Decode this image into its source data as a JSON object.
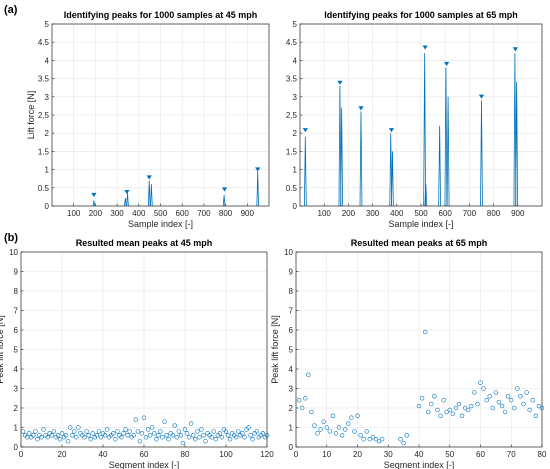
{
  "figure": {
    "label_a": "(a)",
    "label_b": "(b)"
  },
  "chart_data": [
    {
      "type": "line",
      "title": "Identifying peaks for 1000 samples at 45 mph",
      "xlabel": "Sample index [-]",
      "ylabel": "Lift force [N]",
      "xlim": [
        0,
        1000
      ],
      "ylim": [
        0,
        5
      ],
      "xticks": [
        100,
        200,
        300,
        400,
        500,
        600,
        700,
        800,
        900
      ],
      "yticks": [
        0,
        0.5,
        1,
        1.5,
        2,
        2.5,
        3,
        3.5,
        4,
        4.5,
        5
      ],
      "grid": true,
      "series": [
        {
          "pulses": [
            [
              193,
              0.15
            ],
            [
              338,
              0.22
            ],
            [
              348,
              0.35
            ],
            [
              448,
              0.7
            ],
            [
              458,
              0.6
            ],
            [
              793,
              0.3
            ],
            [
              948,
              0.95
            ]
          ]
        }
      ],
      "peak_markers": [
        [
          193,
          0.3
        ],
        [
          345,
          0.38
        ],
        [
          448,
          0.78
        ],
        [
          795,
          0.45
        ],
        [
          948,
          1.0
        ]
      ],
      "color": "#0072BD"
    },
    {
      "type": "line",
      "title": "Identifying peaks for 1000 samples at 65 mph",
      "xlabel": "Sample index [-]",
      "ylabel": "",
      "xlim": [
        0,
        1000
      ],
      "ylim": [
        0,
        5
      ],
      "xticks": [
        100,
        200,
        300,
        400,
        500,
        600,
        700,
        800,
        900
      ],
      "yticks": [
        0,
        0.5,
        1,
        1.5,
        2,
        2.5,
        3,
        3.5,
        4,
        4.5,
        5
      ],
      "grid": true,
      "series": [
        {
          "pulses": [
            [
              22,
              1.9
            ],
            [
              165,
              3.3
            ],
            [
              172,
              2.7
            ],
            [
              252,
              2.6
            ],
            [
              375,
              2.0
            ],
            [
              382,
              1.5
            ],
            [
              515,
              4.2
            ],
            [
              520,
              0.6
            ],
            [
              577,
              2.2
            ],
            [
              603,
              3.8
            ],
            [
              612,
              3.0
            ],
            [
              750,
              2.9
            ],
            [
              888,
              4.2
            ],
            [
              895,
              3.4
            ]
          ]
        }
      ],
      "peak_markers": [
        [
          22,
          2.08
        ],
        [
          165,
          3.38
        ],
        [
          252,
          2.68
        ],
        [
          378,
          2.08
        ],
        [
          517,
          4.35
        ],
        [
          606,
          3.9
        ],
        [
          750,
          3.0
        ],
        [
          890,
          4.3
        ]
      ],
      "color": "#0072BD"
    },
    {
      "type": "scatter",
      "title": "Resulted mean peaks at 45 mph",
      "xlabel": "Segment index [-]",
      "ylabel": "Peak lift force [N]",
      "xlim": [
        0,
        120
      ],
      "ylim": [
        0,
        10
      ],
      "xticks": [
        0,
        20,
        40,
        60,
        80,
        100,
        120
      ],
      "yticks": [
        0,
        1,
        2,
        3,
        4,
        5,
        6,
        7,
        8,
        9,
        10
      ],
      "grid": true,
      "marker": "open-circle",
      "color": "#0072BD",
      "x": [
        1,
        2,
        3,
        4,
        5,
        6,
        7,
        8,
        9,
        10,
        11,
        12,
        13,
        14,
        15,
        16,
        17,
        18,
        19,
        20,
        21,
        22,
        23,
        24,
        25,
        26,
        27,
        28,
        29,
        30,
        31,
        32,
        33,
        34,
        35,
        36,
        37,
        38,
        39,
        40,
        41,
        42,
        43,
        44,
        45,
        46,
        47,
        48,
        49,
        50,
        51,
        52,
        53,
        54,
        55,
        56,
        57,
        58,
        59,
        60,
        61,
        62,
        63,
        64,
        65,
        66,
        67,
        68,
        69,
        70,
        71,
        72,
        73,
        74,
        75,
        76,
        77,
        78,
        79,
        80,
        81,
        82,
        83,
        84,
        85,
        86,
        87,
        88,
        89,
        90,
        91,
        92,
        93,
        94,
        95,
        96,
        97,
        98,
        99,
        100,
        101,
        102,
        103,
        104,
        105,
        106,
        107,
        108,
        109,
        110,
        111,
        112,
        113,
        114,
        115,
        116,
        117,
        118,
        119,
        120
      ],
      "y": [
        0.8,
        0.6,
        0.5,
        0.7,
        0.5,
        0.6,
        0.8,
        0.4,
        0.6,
        0.5,
        0.9,
        0.6,
        0.5,
        0.7,
        0.6,
        0.8,
        0.5,
        0.6,
        0.4,
        0.7,
        0.5,
        0.6,
        0.3,
        1.0,
        0.6,
        0.8,
        0.5,
        1.0,
        0.7,
        0.6,
        0.5,
        0.8,
        0.6,
        0.4,
        0.7,
        0.5,
        0.6,
        0.8,
        0.5,
        0.7,
        0.6,
        0.9,
        0.5,
        0.6,
        0.7,
        0.4,
        0.8,
        0.6,
        0.5,
        0.7,
        0.9,
        0.6,
        0.8,
        0.5,
        0.6,
        1.4,
        0.8,
        0.3,
        0.7,
        1.5,
        0.5,
        0.9,
        0.6,
        1.0,
        0.7,
        0.4,
        0.6,
        0.8,
        0.5,
        1.3,
        0.6,
        0.4,
        0.7,
        0.6,
        1.1,
        0.5,
        0.8,
        0.6,
        0.2,
        0.9,
        0.7,
        0.5,
        1.2,
        0.6,
        0.4,
        0.8,
        0.5,
        0.9,
        0.6,
        0.3,
        0.7,
        0.6,
        0.5,
        0.8,
        0.4,
        0.6,
        0.7,
        0.5,
        0.9,
        0.8,
        0.6,
        0.4,
        0.7,
        0.6,
        0.5,
        0.8,
        0.6,
        0.7,
        0.5,
        0.9,
        1.0,
        0.6,
        0.4,
        0.7,
        0.8,
        0.5,
        0.6,
        0.7,
        0.5,
        0.6
      ]
    },
    {
      "type": "scatter",
      "title": "Resulted mean peaks at 65 mph",
      "xlabel": "Segment index [-]",
      "ylabel": "Peak lift force [N]",
      "xlim": [
        0,
        80
      ],
      "ylim": [
        0,
        10
      ],
      "xticks": [
        0,
        10,
        20,
        30,
        40,
        50,
        60,
        70,
        80
      ],
      "yticks": [
        0,
        1,
        2,
        3,
        4,
        5,
        6,
        7,
        8,
        9,
        10
      ],
      "grid": true,
      "marker": "open-circle",
      "color": "#0072BD",
      "x": [
        1,
        2,
        3,
        4,
        5,
        6,
        7,
        8,
        9,
        10,
        11,
        12,
        13,
        14,
        15,
        16,
        17,
        18,
        19,
        20,
        21,
        22,
        23,
        24,
        25,
        26,
        27,
        28,
        34,
        35,
        36,
        40,
        41,
        42,
        43,
        44,
        45,
        46,
        47,
        48,
        49,
        50,
        51,
        52,
        53,
        54,
        55,
        56,
        57,
        58,
        59,
        60,
        61,
        62,
        63,
        64,
        65,
        66,
        67,
        68,
        69,
        70,
        71,
        72,
        73,
        74,
        75,
        76,
        77,
        78,
        79,
        80
      ],
      "y": [
        2.4,
        2.0,
        2.5,
        3.7,
        1.8,
        1.1,
        0.7,
        0.9,
        1.3,
        1.0,
        0.8,
        1.6,
        0.7,
        1.0,
        0.6,
        0.9,
        1.2,
        1.5,
        0.8,
        1.6,
        0.6,
        0.4,
        0.8,
        0.4,
        0.5,
        0.4,
        0.3,
        0.4,
        0.4,
        0.2,
        0.6,
        2.1,
        2.5,
        5.9,
        1.8,
        2.2,
        2.6,
        1.9,
        1.6,
        2.4,
        1.8,
        1.9,
        1.7,
        2.0,
        2.2,
        1.6,
        2.0,
        1.9,
        2.1,
        2.8,
        2.2,
        3.3,
        3.0,
        2.4,
        2.6,
        2.0,
        2.8,
        2.3,
        2.1,
        1.8,
        2.6,
        2.4,
        2.0,
        3.0,
        2.6,
        2.2,
        2.8,
        1.9,
        2.4,
        1.6,
        2.1,
        2.0
      ]
    }
  ]
}
